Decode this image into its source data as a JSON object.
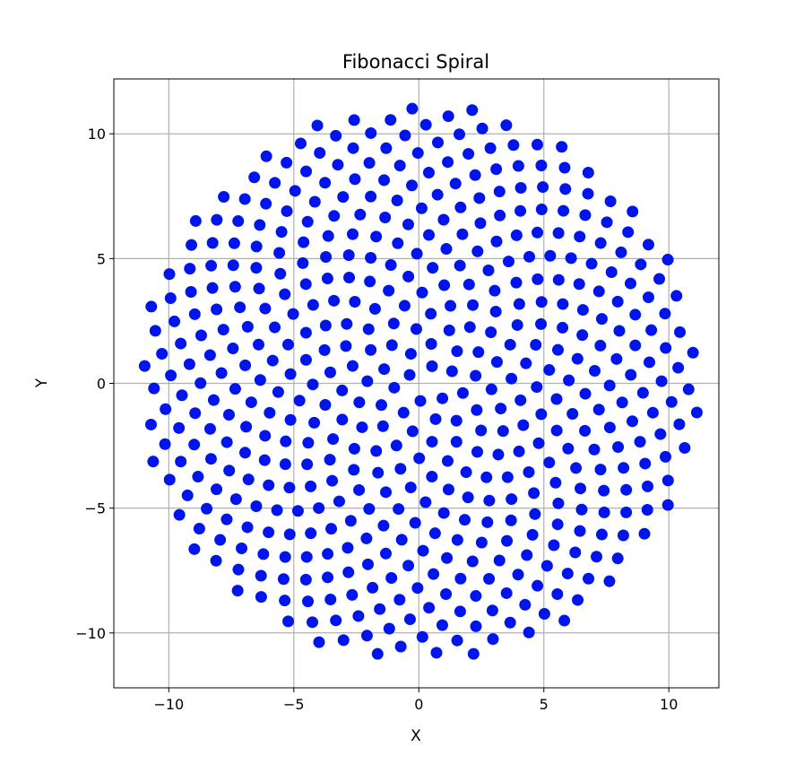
{
  "chart_data": {
    "type": "scatter",
    "title": "Fibonacci Spiral",
    "xlabel": "X",
    "ylabel": "Y",
    "xlim": [
      -12.2,
      12.0
    ],
    "ylim": [
      -12.2,
      12.2
    ],
    "xticks": [
      -10,
      -5,
      0,
      5,
      10
    ],
    "yticks": [
      -10,
      -5,
      0,
      5,
      10
    ],
    "xtick_labels": [
      "−10",
      "−5",
      "0",
      "5",
      "10"
    ],
    "ytick_labels": [
      "−10",
      "−5",
      "0",
      "5",
      "10"
    ],
    "grid": true,
    "marker_color": "#0015ee",
    "series": [
      {
        "point_count": 500,
        "rule": "n-th point: r = 0.5*sqrt(n), angle = n * 137.508 degrees, n = 1..500",
        "x": [],
        "y": []
      }
    ]
  }
}
